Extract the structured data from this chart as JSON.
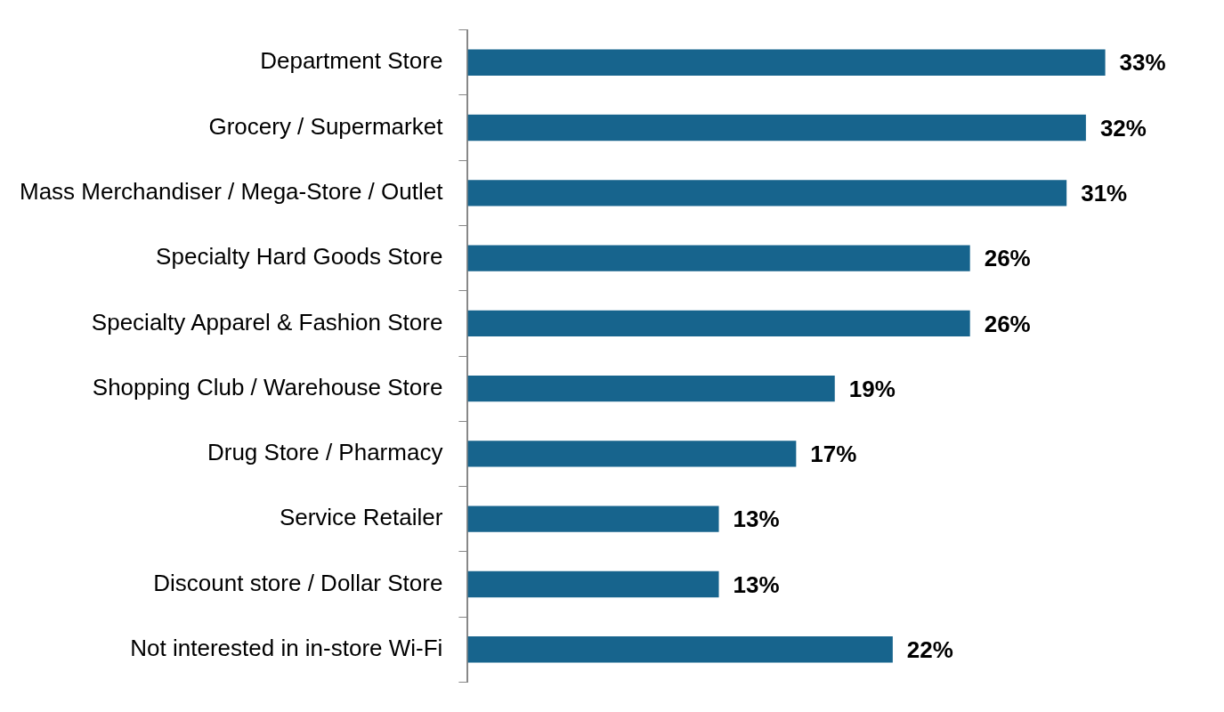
{
  "chart_data": {
    "type": "bar",
    "orientation": "horizontal",
    "categories": [
      "Department Store",
      "Grocery / Supermarket",
      "Mass Merchandiser / Mega-Store / Outlet",
      "Specialty Hard Goods Store",
      "Specialty Apparel & Fashion Store",
      "Shopping Club / Warehouse Store",
      "Drug Store / Pharmacy",
      "Service Retailer",
      "Discount store / Dollar Store",
      "Not interested in in-store Wi-Fi"
    ],
    "values": [
      33,
      32,
      31,
      26,
      26,
      19,
      17,
      13,
      13,
      22
    ],
    "value_labels": [
      "33%",
      "32%",
      "31%",
      "26%",
      "26%",
      "19%",
      "17%",
      "13%",
      "13%",
      "22%"
    ],
    "color": "#17648d",
    "grid": false,
    "legend": false,
    "tick_labels": "y"
  }
}
